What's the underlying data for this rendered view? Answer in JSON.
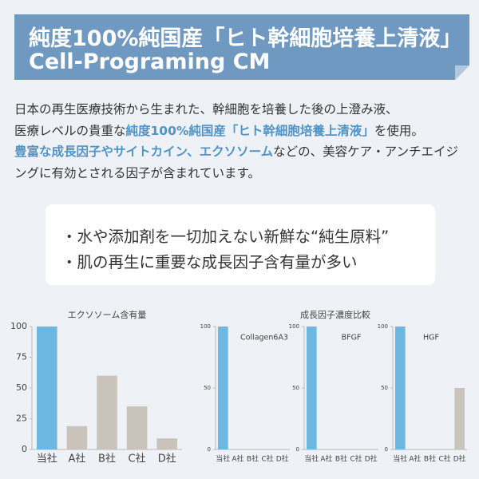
{
  "header": {
    "title_line1": "純度100%純国産「ヒト幹細胞培養上清液」",
    "title_line2": "Cell-Programing CM"
  },
  "body": {
    "segments": [
      {
        "text": "日本の再生医療技術から生まれた、幹細胞を培養した後の上澄み液、",
        "emphasis": false
      },
      {
        "text": "医療レベルの貴重な",
        "emphasis": false
      },
      {
        "text": "純度100%純国産「ヒト幹細胞培養上清液」",
        "emphasis": true
      },
      {
        "text": "を使用。",
        "emphasis": false
      },
      {
        "text": "豊富な成長因子やサイトカイン、エクソソーム",
        "emphasis": true
      },
      {
        "text": "などの、美容ケア・アンチエイジングに有効とされる因子が含まれています。",
        "emphasis": false
      }
    ]
  },
  "points": [
    "・水や添加剤を一切加えない新鮮な“純生原料”",
    "・肌の再生に重要な成長因子含有量が多い"
  ],
  "growth_factor_title": "成長因子濃度比較",
  "chart_data": [
    {
      "type": "bar",
      "title": "エクソソーム含有量",
      "categories": [
        "当社",
        "A社",
        "B社",
        "C社",
        "D社"
      ],
      "values": [
        100,
        19,
        60,
        35,
        9
      ],
      "colors": [
        "#6cb8e3",
        "#c9c3bb",
        "#c9c3bb",
        "#c9c3bb",
        "#c9c3bb"
      ],
      "ylim": [
        0,
        100
      ],
      "yticks": [
        0,
        25,
        50,
        75,
        100
      ]
    },
    {
      "type": "bar",
      "title": "Collagen6A3",
      "categories": [
        "当社",
        "A社",
        "B社",
        "C社",
        "D社"
      ],
      "values": [
        100,
        0,
        0,
        0,
        0
      ],
      "colors": [
        "#6cb8e3",
        "#c9c3bb",
        "#c9c3bb",
        "#c9c3bb",
        "#c9c3bb"
      ],
      "ylim": [
        0,
        100
      ],
      "yticks": [
        0,
        50,
        100
      ]
    },
    {
      "type": "bar",
      "title": "BFGF",
      "categories": [
        "当社",
        "A社",
        "B社",
        "C社",
        "D社"
      ],
      "values": [
        100,
        0,
        0,
        0,
        0
      ],
      "colors": [
        "#6cb8e3",
        "#c9c3bb",
        "#c9c3bb",
        "#c9c3bb",
        "#c9c3bb"
      ],
      "ylim": [
        0,
        100
      ],
      "yticks": [
        0,
        50,
        100
      ]
    },
    {
      "type": "bar",
      "title": "HGF",
      "categories": [
        "当社",
        "A社",
        "B社",
        "C社",
        "D社"
      ],
      "values": [
        100,
        0,
        0,
        0,
        50
      ],
      "colors": [
        "#6cb8e3",
        "#c9c3bb",
        "#c9c3bb",
        "#c9c3bb",
        "#c9c3bb"
      ],
      "ylim": [
        0,
        100
      ],
      "yticks": [
        0,
        50,
        100
      ]
    }
  ]
}
